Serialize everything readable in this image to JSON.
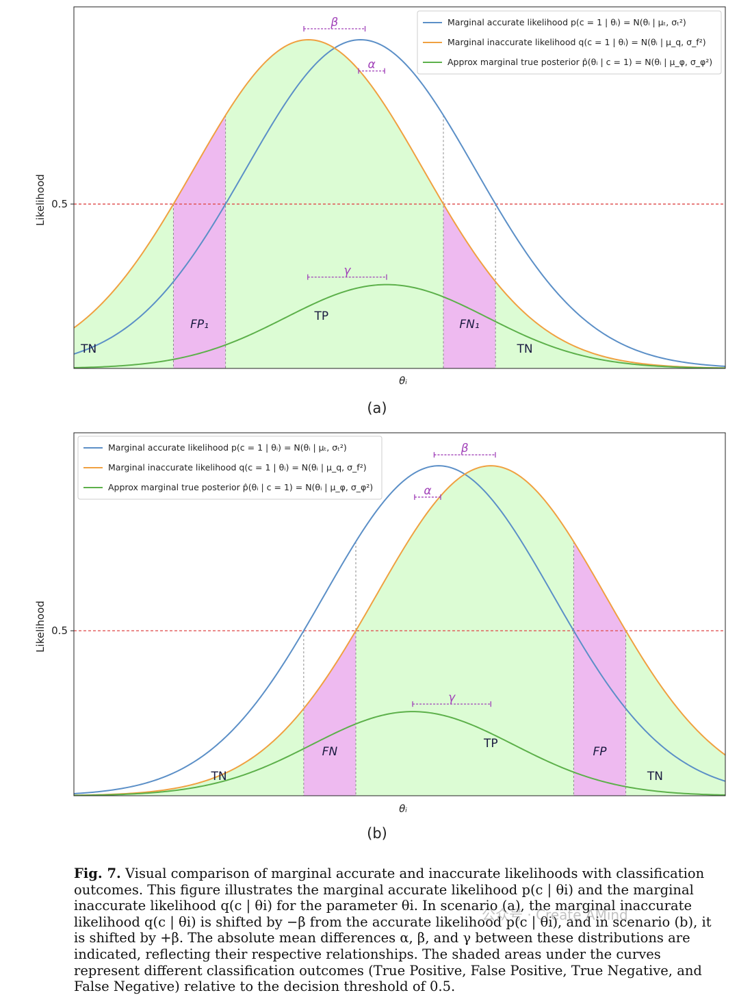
{
  "chart_data": [
    {
      "type": "area",
      "panel_label": "(a)",
      "xlabel": "θ_i",
      "ylabel": "Likelihood",
      "threshold": 0.5,
      "threshold_label": "0.5",
      "colors": {
        "accurate": "#5b8fc7",
        "inaccurate": "#f0a040",
        "posterior": "#5cb04a",
        "fill_green": "#dcfcd4",
        "fill_pink": "#eebaf0",
        "threshold": "#e05555",
        "bracket": "#a040b8"
      },
      "series": [
        {
          "name": "Marginal accurate likelihood p(c = 1 | θ_i) = N(θ_i | μ_t, σ_t²)",
          "color": "#5b8fc7",
          "mean": 0.44,
          "std": 0.176,
          "peak": 1.0
        },
        {
          "name": "Marginal inaccurate likelihood q(c = 1 | θ_i) = N(θ_i | μ_q, σ_f²)",
          "color": "#f0a040",
          "mean": 0.36,
          "std": 0.176,
          "peak": 1.0
        },
        {
          "name": "Approx marginal true posterior p̂(θ_i | c = 1) = N(θ_i | μ_φ, σ_φ²)",
          "color": "#5cb04a",
          "mean": 0.48,
          "std": 0.155,
          "peak": 0.255
        }
      ],
      "regions": [
        {
          "label": "TN",
          "kind": "negative"
        },
        {
          "label": "FP₁",
          "kind": "error"
        },
        {
          "label": "TP",
          "kind": "positive"
        },
        {
          "label": "FN₁",
          "kind": "error"
        },
        {
          "label": "TN",
          "kind": "negative"
        }
      ],
      "annotations": [
        {
          "symbol": "β",
          "between": [
            "inaccurate",
            "accurate"
          ]
        },
        {
          "symbol": "α"
        },
        {
          "symbol": "γ"
        }
      ],
      "legend_position": "top-right"
    },
    {
      "type": "area",
      "panel_label": "(b)",
      "xlabel": "θ_i",
      "ylabel": "Likelihood",
      "threshold": 0.5,
      "threshold_label": "0.5",
      "colors": {
        "accurate": "#5b8fc7",
        "inaccurate": "#f0a040",
        "posterior": "#5cb04a",
        "fill_green": "#dcfcd4",
        "fill_pink": "#eebaf0",
        "threshold": "#e05555",
        "bracket": "#a040b8"
      },
      "series": [
        {
          "name": "Marginal accurate likelihood p(c = 1 | θ_i) = N(θ_i | μ_t, σ_t²)",
          "color": "#5b8fc7",
          "mean": 0.56,
          "std": 0.176,
          "peak": 1.0
        },
        {
          "name": "Marginal inaccurate likelihood q(c = 1 | θ_i) = N(θ_i | μ_q, σ_f²)",
          "color": "#f0a040",
          "mean": 0.64,
          "std": 0.176,
          "peak": 1.0
        },
        {
          "name": "Approx marginal true posterior p̂(θ_i | c = 1) = N(θ_i | μ_φ, σ_φ²)",
          "color": "#5cb04a",
          "mean": 0.52,
          "std": 0.155,
          "peak": 0.255
        }
      ],
      "regions": [
        {
          "label": "TN",
          "kind": "negative"
        },
        {
          "label": "FN",
          "kind": "error"
        },
        {
          "label": "TP",
          "kind": "positive"
        },
        {
          "label": "FP",
          "kind": "error"
        },
        {
          "label": "TN",
          "kind": "negative"
        }
      ],
      "annotations": [
        {
          "symbol": "β",
          "between": [
            "accurate",
            "inaccurate"
          ]
        },
        {
          "symbol": "α"
        },
        {
          "symbol": "γ"
        }
      ],
      "legend_position": "top-left"
    }
  ],
  "caption": {
    "label": "Fig. 7.",
    "text": "Visual comparison of marginal accurate and inaccurate likelihoods with classification outcomes. This figure illustrates the marginal accurate likelihood p(c | θi) and the marginal inaccurate likelihood q(c | θi) for the parameter θi. In scenario (a), the marginal inaccurate likelihood q(c | θi) is shifted by −β from the accurate likelihood p(c | θi), and in scenario (b), it is shifted by +β. The absolute mean differences α, β, and γ between these distributions are indicated, reflecting their respective relationships. The shaded areas under the curves represent different classification outcomes (True Positive, False Positive, True Negative, and False Negative) relative to the decision threshold of 0.5."
  },
  "watermark": "公众号 · Create AMind"
}
